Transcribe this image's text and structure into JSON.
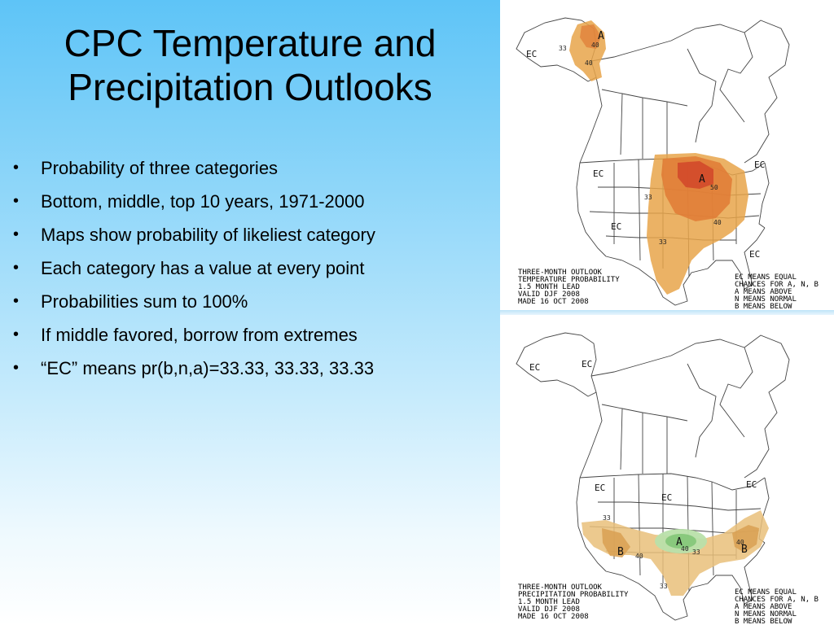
{
  "slide": {
    "title_line1": "CPC Temperature and",
    "title_line2": "Precipitation Outlooks",
    "bullets": [
      "Probability of three categories",
      "Bottom, middle, top 10 years, 1971-2000",
      "Maps show probability of likeliest category",
      "Each category has a value at every point",
      "Probabilities sum to 100%",
      "If middle favored, borrow from extremes",
      "“EC” means pr(b,n,a)=33.33, 33.33, 33.33"
    ],
    "bullet_glyph": "•"
  },
  "temperature_map": {
    "caption": [
      "THREE-MONTH OUTLOOK",
      "TEMPERATURE PROBABILITY",
      "1.5 MONTH LEAD",
      "VALID DJF 2008",
      "MADE 16 OCT 2008"
    ],
    "legend": [
      "EC MEANS EQUAL",
      "CHANCES FOR A, N, B",
      "A MEANS ABOVE",
      "N MEANS NORMAL",
      "B MEANS BELOW"
    ],
    "labels": {
      "ec_alaska": "EC",
      "ec_northwest": "EC",
      "ec_southwest": "EC",
      "ec_northeast": "EC",
      "ec_southeast": "EC",
      "a_alaska": "A",
      "a_greatlakes": "A",
      "c33_alaska": "33",
      "c40_alaska": "40",
      "c40_alaska_south": "40",
      "c33_plains": "33",
      "c50_lakes": "50",
      "c40_south": "40",
      "c33_texas": "33"
    },
    "colors": {
      "light": "#e8a54a",
      "mid": "#e07a35",
      "dark": "#d3492a"
    }
  },
  "precipitation_map": {
    "caption": [
      "THREE-MONTH OUTLOOK",
      "PRECIPITATION PROBABILITY",
      "1.5 MONTH LEAD",
      "VALID DJF 2008",
      "MADE 16 OCT 2008"
    ],
    "legend": [
      "EC MEANS EQUAL",
      "CHANCES FOR A, N, B",
      "A MEANS ABOVE",
      "N MEANS NORMAL",
      "B MEANS BELOW"
    ],
    "labels": {
      "ec_alaska": "EC",
      "ec_canada": "EC",
      "ec_west": "EC",
      "ec_central": "EC",
      "ec_east": "EC",
      "a_plains": "A",
      "b_southwest": "B",
      "b_southeast": "B",
      "c40_sw": "40",
      "c40_se": "40",
      "c33_sw": "33",
      "c33_center": "33",
      "c33_gulf": "33",
      "c40_center": "40"
    },
    "colors": {
      "light": "#e9c07a",
      "mid": "#d9a052",
      "green": "#86c77a",
      "green_light": "#b9e0aa"
    }
  }
}
